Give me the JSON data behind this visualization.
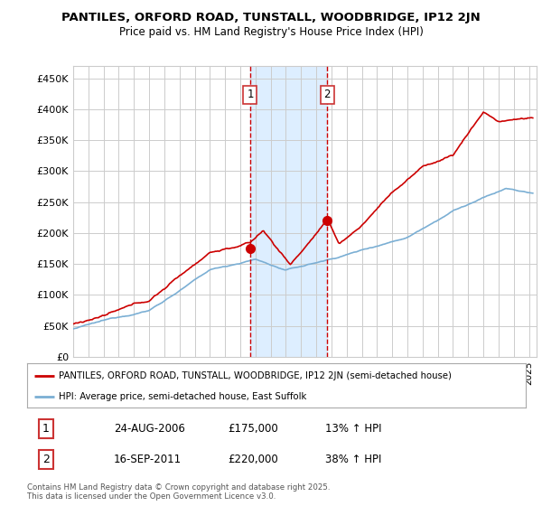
{
  "title_line1": "PANTILES, ORFORD ROAD, TUNSTALL, WOODBRIDGE, IP12 2JN",
  "title_line2": "Price paid vs. HM Land Registry's House Price Index (HPI)",
  "ylabel_ticks": [
    "£0",
    "£50K",
    "£100K",
    "£150K",
    "£200K",
    "£250K",
    "£300K",
    "£350K",
    "£400K",
    "£450K"
  ],
  "ytick_values": [
    0,
    50000,
    100000,
    150000,
    200000,
    250000,
    300000,
    350000,
    400000,
    450000
  ],
  "ylim": [
    0,
    470000
  ],
  "xlim_start": 1995.0,
  "xlim_end": 2025.5,
  "shaded_region": [
    2006.65,
    2011.71
  ],
  "event1_x": 2006.65,
  "event1_label": "1",
  "event1_price": "£175,000",
  "event1_date": "24-AUG-2006",
  "event1_hpi": "13% ↑ HPI",
  "event1_y": 175000,
  "event2_x": 2011.71,
  "event2_label": "2",
  "event2_price": "£220,000",
  "event2_date": "16-SEP-2011",
  "event2_hpi": "38% ↑ HPI",
  "event2_y": 220000,
  "line1_color": "#cc0000",
  "line2_color": "#7bafd4",
  "line1_label": "PANTILES, ORFORD ROAD, TUNSTALL, WOODBRIDGE, IP12 2JN (semi-detached house)",
  "line2_label": "HPI: Average price, semi-detached house, East Suffolk",
  "background_color": "#ffffff",
  "plot_bg_color": "#ffffff",
  "grid_color": "#cccccc",
  "shaded_color": "#ddeeff",
  "event_box_color": "#cc3333",
  "footer_text": "Contains HM Land Registry data © Crown copyright and database right 2025.\nThis data is licensed under the Open Government Licence v3.0."
}
